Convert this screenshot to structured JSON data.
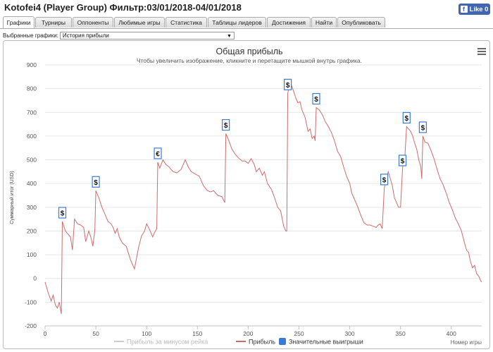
{
  "header": {
    "title": "Kotofei4 (Player Group) Фильтр:03/01/2018-04/01/2018",
    "like_label": "Like 0",
    "fb_glyph": "f"
  },
  "tabs": [
    {
      "label": "Графики",
      "active": true
    },
    {
      "label": "Турниры"
    },
    {
      "label": "Оппоненты"
    },
    {
      "label": "Любимые игры"
    },
    {
      "label": "Статистика"
    },
    {
      "label": "Таблицы лидеров"
    },
    {
      "label": "Достижения"
    },
    {
      "label": "Найти"
    },
    {
      "label": "Опубликовать"
    }
  ],
  "selector": {
    "label": "Выбранные графики:",
    "value": "История прибыли",
    "arrow": "▼"
  },
  "chart_data": {
    "type": "line",
    "title": "Общая прибыль",
    "subtitle": "Чтобы увеличить изображение, кликните и перетащите мышкой внутрь графика.",
    "xlabel": "Номер игры",
    "ylabel": "Суммарный итог (USD)",
    "xlim": [
      0,
      430
    ],
    "ylim": [
      -200,
      900
    ],
    "xticks": [
      0,
      50,
      100,
      150,
      200,
      250,
      300,
      350,
      400
    ],
    "yticks": [
      -200,
      -100,
      0,
      100,
      200,
      300,
      400,
      500,
      600,
      700,
      800,
      900
    ],
    "grid": true,
    "legend": [
      {
        "name": "Прибыль за минусом рейка",
        "color": "#cccccc",
        "kind": "line"
      },
      {
        "name": "Прибыль",
        "color": "#d06b6b",
        "kind": "line"
      },
      {
        "name": "Значительные выигрыши",
        "color": "#3a7bd5",
        "kind": "box"
      }
    ],
    "series": [
      {
        "name": "Прибыль",
        "color": "#d06b6b",
        "points": [
          [
            0,
            -15
          ],
          [
            3,
            -60
          ],
          [
            6,
            -95
          ],
          [
            8,
            -70
          ],
          [
            10,
            -110
          ],
          [
            12,
            -125
          ],
          [
            14,
            -100
          ],
          [
            16,
            -150
          ],
          [
            17,
            240
          ],
          [
            20,
            200
          ],
          [
            22,
            190
          ],
          [
            25,
            175
          ],
          [
            27,
            120
          ],
          [
            29,
            250
          ],
          [
            32,
            230
          ],
          [
            35,
            225
          ],
          [
            38,
            215
          ],
          [
            40,
            155
          ],
          [
            43,
            200
          ],
          [
            45,
            175
          ],
          [
            47,
            135
          ],
          [
            49,
            205
          ],
          [
            50,
            370
          ],
          [
            53,
            340
          ],
          [
            56,
            300
          ],
          [
            59,
            270
          ],
          [
            62,
            240
          ],
          [
            65,
            230
          ],
          [
            67,
            215
          ],
          [
            69,
            190
          ],
          [
            71,
            210
          ],
          [
            73,
            175
          ],
          [
            76,
            150
          ],
          [
            80,
            135
          ],
          [
            84,
            80
          ],
          [
            88,
            40
          ],
          [
            92,
            130
          ],
          [
            95,
            180
          ],
          [
            98,
            200
          ],
          [
            100,
            230
          ],
          [
            103,
            205
          ],
          [
            106,
            175
          ],
          [
            108,
            195
          ],
          [
            110,
            210
          ],
          [
            111,
            490
          ],
          [
            113,
            465
          ],
          [
            116,
            500
          ],
          [
            119,
            480
          ],
          [
            122,
            470
          ],
          [
            126,
            450
          ],
          [
            130,
            445
          ],
          [
            134,
            460
          ],
          [
            138,
            500
          ],
          [
            141,
            470
          ],
          [
            144,
            450
          ],
          [
            148,
            440
          ],
          [
            152,
            430
          ],
          [
            156,
            390
          ],
          [
            160,
            370
          ],
          [
            163,
            365
          ],
          [
            166,
            370
          ],
          [
            170,
            350
          ],
          [
            174,
            345
          ],
          [
            177,
            320
          ],
          [
            178,
            610
          ],
          [
            181,
            580
          ],
          [
            184,
            545
          ],
          [
            187,
            525
          ],
          [
            190,
            510
          ],
          [
            194,
            495
          ],
          [
            197,
            495
          ],
          [
            200,
            485
          ],
          [
            203,
            505
          ],
          [
            206,
            480
          ],
          [
            208,
            450
          ],
          [
            211,
            465
          ],
          [
            214,
            435
          ],
          [
            216,
            450
          ],
          [
            219,
            400
          ],
          [
            223,
            375
          ],
          [
            226,
            340
          ],
          [
            229,
            300
          ],
          [
            232,
            285
          ],
          [
            235,
            220
          ],
          [
            237,
            200
          ],
          [
            238,
            200
          ],
          [
            239,
            780
          ],
          [
            241,
            825
          ],
          [
            243,
            810
          ],
          [
            245,
            785
          ],
          [
            247,
            760
          ],
          [
            249,
            740
          ],
          [
            251,
            745
          ],
          [
            253,
            710
          ],
          [
            256,
            680
          ],
          [
            259,
            620
          ],
          [
            261,
            630
          ],
          [
            263,
            590
          ],
          [
            265,
            600
          ],
          [
            266,
            580
          ],
          [
            267,
            720
          ],
          [
            270,
            710
          ],
          [
            273,
            690
          ],
          [
            276,
            660
          ],
          [
            279,
            640
          ],
          [
            282,
            615
          ],
          [
            285,
            580
          ],
          [
            288,
            535
          ],
          [
            291,
            515
          ],
          [
            294,
            470
          ],
          [
            297,
            430
          ],
          [
            300,
            400
          ],
          [
            302,
            360
          ],
          [
            305,
            330
          ],
          [
            308,
            300
          ],
          [
            311,
            265
          ],
          [
            314,
            235
          ],
          [
            317,
            225
          ],
          [
            320,
            225
          ],
          [
            323,
            220
          ],
          [
            326,
            215
          ],
          [
            328,
            225
          ],
          [
            330,
            230
          ],
          [
            332,
            210
          ],
          [
            334,
            380
          ],
          [
            336,
            420
          ],
          [
            338,
            450
          ],
          [
            340,
            420
          ],
          [
            342,
            390
          ],
          [
            344,
            340
          ],
          [
            346,
            320
          ],
          [
            348,
            300
          ],
          [
            350,
            300
          ],
          [
            352,
            460
          ],
          [
            353,
            520
          ],
          [
            354,
            490
          ],
          [
            356,
            640
          ],
          [
            358,
            630
          ],
          [
            360,
            620
          ],
          [
            362,
            600
          ],
          [
            364,
            570
          ],
          [
            366,
            545
          ],
          [
            368,
            500
          ],
          [
            370,
            470
          ],
          [
            371,
            420
          ],
          [
            372,
            600
          ],
          [
            374,
            575
          ],
          [
            377,
            570
          ],
          [
            380,
            540
          ],
          [
            383,
            505
          ],
          [
            386,
            460
          ],
          [
            389,
            420
          ],
          [
            392,
            395
          ],
          [
            395,
            360
          ],
          [
            398,
            320
          ],
          [
            401,
            290
          ],
          [
            404,
            255
          ],
          [
            407,
            230
          ],
          [
            410,
            200
          ],
          [
            413,
            150
          ],
          [
            415,
            120
          ],
          [
            417,
            110
          ],
          [
            419,
            70
          ],
          [
            421,
            45
          ],
          [
            423,
            55
          ],
          [
            425,
            20
          ],
          [
            427,
            10
          ],
          [
            428,
            0
          ],
          [
            429,
            -10
          ],
          [
            430,
            -15
          ]
        ]
      }
    ],
    "markers": [
      {
        "x": 17,
        "y": 240,
        "label": "$"
      },
      {
        "x": 50,
        "y": 370,
        "label": "$"
      },
      {
        "x": 111,
        "y": 490,
        "label": "€"
      },
      {
        "x": 178,
        "y": 610,
        "label": "$"
      },
      {
        "x": 239,
        "y": 780,
        "label": "$"
      },
      {
        "x": 267,
        "y": 720,
        "label": "$"
      },
      {
        "x": 334,
        "y": 380,
        "label": "$"
      },
      {
        "x": 352,
        "y": 460,
        "label": "$"
      },
      {
        "x": 356,
        "y": 640,
        "label": "$"
      },
      {
        "x": 372,
        "y": 600,
        "label": "$"
      }
    ]
  }
}
